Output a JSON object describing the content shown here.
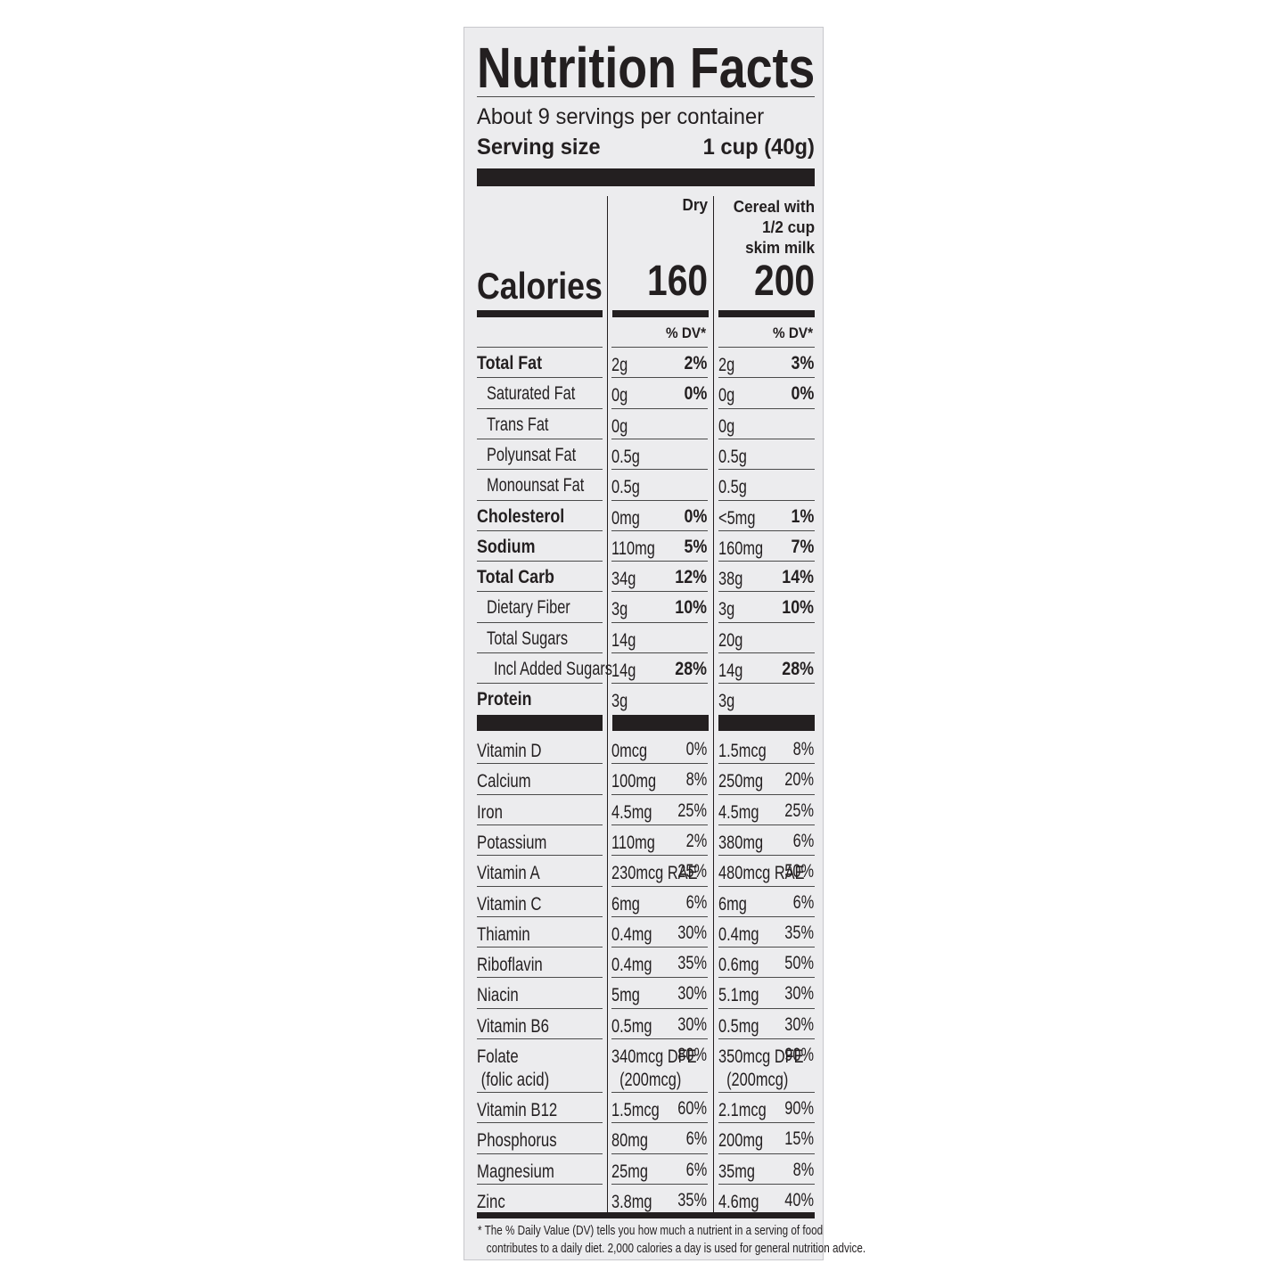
{
  "header": {
    "title": "Nutrition Facts",
    "servings": "About 9 servings per container",
    "serving_size_label": "Serving size",
    "serving_size_value": "1 cup (40g)"
  },
  "columns": {
    "dry": "Dry",
    "milk": "Cereal with\n1/2 cup\nskim milk",
    "calories_label": "Calories",
    "calories": [
      "160",
      "200"
    ],
    "dv_header": [
      "% DV*",
      "% DV*"
    ]
  },
  "nutrients": [
    {
      "label": "Total Fat",
      "level": 0,
      "dry": [
        "2g",
        "2%"
      ],
      "milk": [
        "2g",
        "3%"
      ]
    },
    {
      "label": "Saturated Fat",
      "level": 1,
      "dry": [
        "0g",
        "0%"
      ],
      "milk": [
        "0g",
        "0%"
      ]
    },
    {
      "label": "Trans Fat",
      "level": 1,
      "dry": [
        "0g"
      ],
      "milk": [
        "0g"
      ]
    },
    {
      "label": "Polyunsat Fat",
      "level": 1,
      "dry": [
        "0.5g"
      ],
      "milk": [
        "0.5g"
      ]
    },
    {
      "label": "Monounsat Fat",
      "level": 1,
      "dry": [
        "0.5g"
      ],
      "milk": [
        "0.5g"
      ]
    },
    {
      "label": "Cholesterol",
      "level": 0,
      "dry": [
        "0mg",
        "0%"
      ],
      "milk": [
        "<5mg",
        "1%"
      ]
    },
    {
      "label": "Sodium",
      "level": 0,
      "dry": [
        "110mg",
        "5%"
      ],
      "milk": [
        "160mg",
        "7%"
      ]
    },
    {
      "label": "Total Carb",
      "level": 0,
      "dry": [
        "34g",
        "12%"
      ],
      "milk": [
        "38g",
        "14%"
      ]
    },
    {
      "label": "Dietary Fiber",
      "level": 1,
      "dry": [
        "3g",
        "10%"
      ],
      "milk": [
        "3g",
        "10%"
      ]
    },
    {
      "label": "Total Sugars",
      "level": 1,
      "dry": [
        "14g"
      ],
      "milk": [
        "20g"
      ]
    },
    {
      "label": "Incl Added Sugars",
      "level": 2,
      "dry": [
        "14g",
        "28%"
      ],
      "milk": [
        "14g",
        "28%"
      ]
    },
    {
      "label": "Protein",
      "level": 0,
      "dry": [
        "3g"
      ],
      "milk": [
        "3g"
      ]
    }
  ],
  "vitamins": [
    {
      "label": "Vitamin D",
      "dry": [
        "0mcg",
        "0%"
      ],
      "milk": [
        "1.5mcg",
        "8%"
      ]
    },
    {
      "label": "Calcium",
      "dry": [
        "100mg",
        "8%"
      ],
      "milk": [
        "250mg",
        "20%"
      ]
    },
    {
      "label": "Iron",
      "dry": [
        "4.5mg",
        "25%"
      ],
      "milk": [
        "4.5mg",
        "25%"
      ]
    },
    {
      "label": "Potassium",
      "dry": [
        "110mg",
        "2%"
      ],
      "milk": [
        "380mg",
        "6%"
      ]
    },
    {
      "label": "Vitamin A",
      "dry": [
        "230mcg RAE",
        "25%"
      ],
      "milk": [
        "480mcg RAE",
        "50%"
      ]
    },
    {
      "label": "Vitamin C",
      "dry": [
        "6mg",
        "6%"
      ],
      "milk": [
        "6mg",
        "6%"
      ]
    },
    {
      "label": "Thiamin",
      "dry": [
        "0.4mg",
        "30%"
      ],
      "milk": [
        "0.4mg",
        "35%"
      ]
    },
    {
      "label": "Riboflavin",
      "dry": [
        "0.4mg",
        "35%"
      ],
      "milk": [
        "0.6mg",
        "50%"
      ]
    },
    {
      "label": "Niacin",
      "dry": [
        "5mg",
        "30%"
      ],
      "milk": [
        "5.1mg",
        "30%"
      ]
    },
    {
      "label": "Vitamin B6",
      "dry": [
        "0.5mg",
        "30%"
      ],
      "milk": [
        "0.5mg",
        "30%"
      ]
    },
    {
      "label": "Folate\n (folic acid)",
      "dry": [
        "340mcg DFE\n  (200mcg)",
        "80%"
      ],
      "milk": [
        "350mcg DFE\n  (200mcg)",
        "90%"
      ]
    },
    {
      "label": "Vitamin B12",
      "dry": [
        "1.5mcg",
        "60%"
      ],
      "milk": [
        "2.1mcg",
        "90%"
      ]
    },
    {
      "label": "Phosphorus",
      "dry": [
        "80mg",
        "6%"
      ],
      "milk": [
        "200mg",
        "15%"
      ]
    },
    {
      "label": "Magnesium",
      "dry": [
        "25mg",
        "6%"
      ],
      "milk": [
        "35mg",
        "8%"
      ]
    },
    {
      "label": "Zinc",
      "dry": [
        "3.8mg",
        "35%"
      ],
      "milk": [
        "4.6mg",
        "40%"
      ]
    }
  ],
  "footnote": "* The % Daily Value (DV) tells you how much a nutrient in a serving of food\n   contributes to a daily diet. 2,000 calories a day is used for general nutrition advice."
}
